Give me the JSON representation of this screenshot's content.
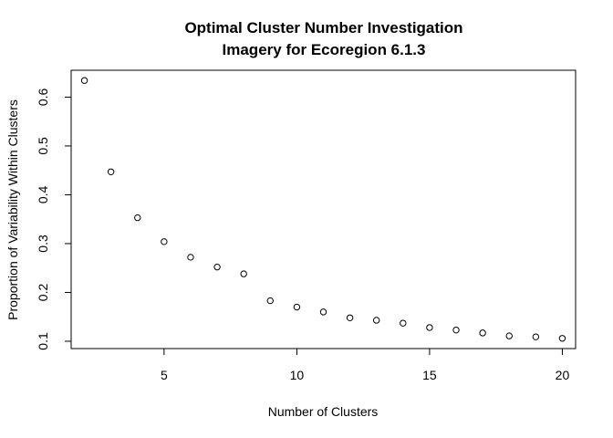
{
  "chart_data": {
    "type": "scatter",
    "title": [
      "Optimal Cluster Number Investigation",
      "Imagery for Ecoregion 6.1.3"
    ],
    "xlabel": "Number of Clusters",
    "ylabel": "Proportion of Variability Within Clusters",
    "xlim": [
      1.5,
      20.5
    ],
    "ylim": [
      0.085,
      0.655
    ],
    "xticks": [
      5,
      10,
      15,
      20
    ],
    "yticks": [
      0.1,
      0.2,
      0.3,
      0.4,
      0.5,
      0.6
    ],
    "grid": false,
    "marker": "open-circle",
    "color": "#000000",
    "x": [
      2,
      3,
      4,
      5,
      6,
      7,
      8,
      9,
      10,
      11,
      12,
      13,
      14,
      15,
      16,
      17,
      18,
      19,
      20
    ],
    "y": [
      0.634,
      0.447,
      0.353,
      0.304,
      0.272,
      0.252,
      0.238,
      0.183,
      0.17,
      0.16,
      0.148,
      0.143,
      0.137,
      0.128,
      0.123,
      0.117,
      0.111,
      0.109,
      0.106
    ]
  }
}
